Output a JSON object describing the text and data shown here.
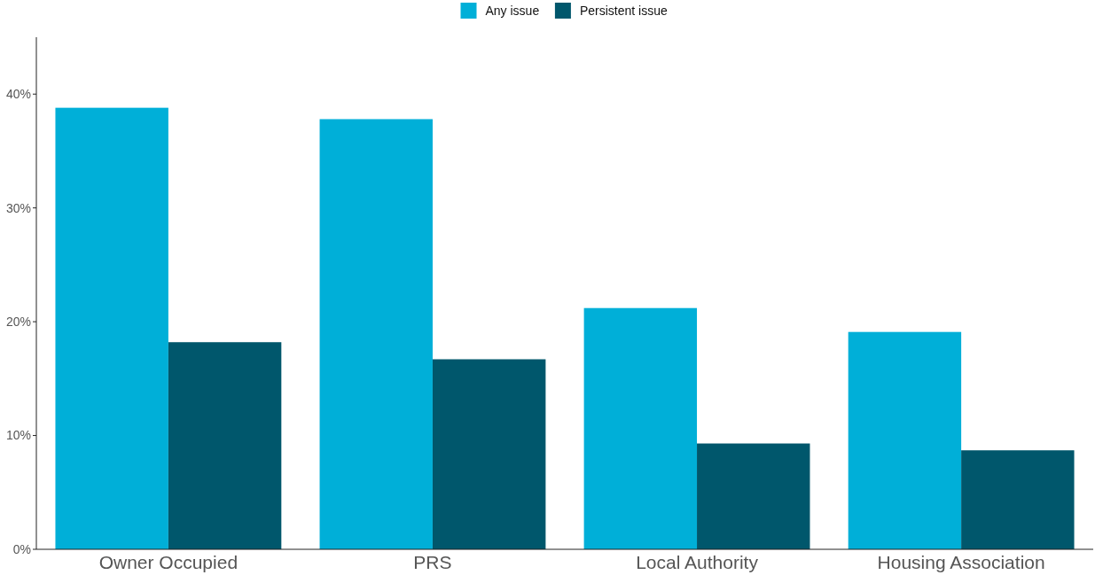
{
  "chart_data": {
    "type": "bar",
    "categories": [
      "Owner Occupied",
      "PRS",
      "Local Authority",
      "Housing Association"
    ],
    "series": [
      {
        "name": "Any issue",
        "color": "#00afd8",
        "values": [
          38.8,
          37.8,
          21.2,
          19.1
        ]
      },
      {
        "name": "Persistent issue",
        "color": "#00576c",
        "values": [
          18.2,
          16.7,
          9.3,
          8.7
        ]
      }
    ],
    "ylim": [
      0,
      45
    ],
    "yticks": [
      {
        "value": 0,
        "label": "0%"
      },
      {
        "value": 10,
        "label": "10%"
      },
      {
        "value": 20,
        "label": "20%"
      },
      {
        "value": 30,
        "label": "30%"
      },
      {
        "value": 40,
        "label": "40%"
      }
    ],
    "legend": "top",
    "grid": false
  }
}
